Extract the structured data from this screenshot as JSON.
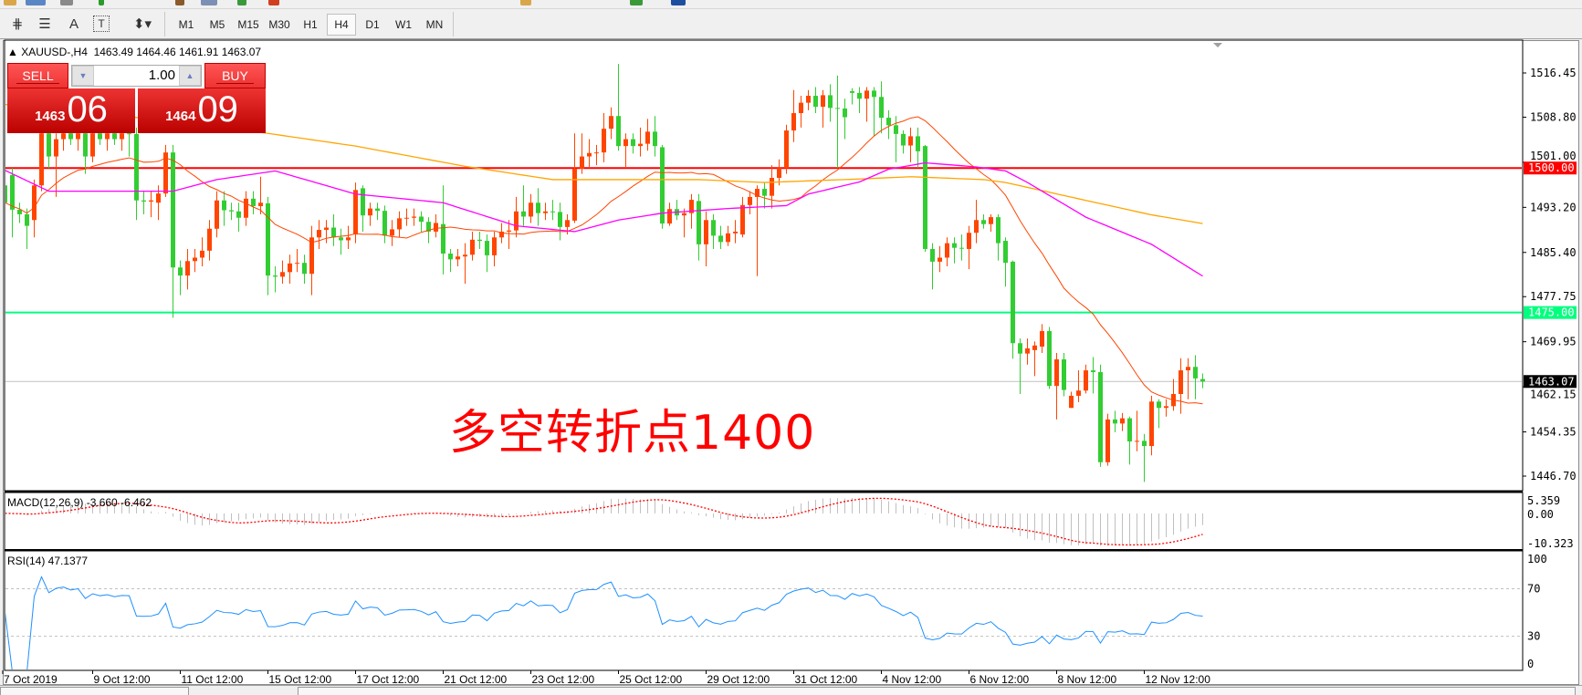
{
  "toolbar": {
    "tools": [
      {
        "icon": "objects-list-icon",
        "glyph": "⋕"
      },
      {
        "icon": "fibonacci-icon",
        "glyph": "☰"
      },
      {
        "icon": "text-icon",
        "glyph": "A"
      },
      {
        "icon": "text-label-icon",
        "glyph": "T"
      },
      {
        "icon": "arrows-dropdown-icon",
        "glyph": "⬍▾"
      }
    ],
    "timeframes": [
      "M1",
      "M5",
      "M15",
      "M30",
      "H1",
      "H4",
      "D1",
      "W1",
      "MN"
    ],
    "selected_timeframe": "H4"
  },
  "chart": {
    "symbol_header": "XAUUSD-,H4",
    "ohlc_header": "1463.49 1464.46 1461.91 1463.07",
    "annotation": "多空转折点1400",
    "one_click": {
      "sell_label": "SELL",
      "buy_label": "BUY",
      "lot": "1.00",
      "sell_price_small": "1463",
      "sell_price_big": "06",
      "buy_price_small": "1464",
      "buy_price_big": "09"
    },
    "price_axis_labels": [
      "1516.45",
      "1508.80",
      "1501.00",
      "1493.20",
      "1485.40",
      "1477.75",
      "1469.95",
      "1462.15",
      "1454.35",
      "1446.70"
    ],
    "hlines": [
      {
        "price": 1500.0,
        "label": "1500.00",
        "color": "#ff0000"
      },
      {
        "price": 1475.0,
        "label": "1475.00",
        "color": "#00ff7f"
      }
    ],
    "current_price": {
      "price": 1463.07,
      "label": "1463.07"
    },
    "time_labels": [
      "7 Oct 2019",
      "9 Oct 12:00",
      "11 Oct 12:00",
      "15 Oct 12:00",
      "17 Oct 12:00",
      "21 Oct 12:00",
      "23 Oct 12:00",
      "25 Oct 12:00",
      "29 Oct 12:00",
      "31 Oct 12:00",
      "4 Nov 12:00",
      "6 Nov 12:00",
      "8 Nov 12:00",
      "12 Nov 12:00"
    ],
    "colors": {
      "bull": "#ff4500",
      "bear": "#32cd32",
      "ma_fast": "#ff4500",
      "ma_mid": "#ff00ff",
      "ma_slow": "#ffa500",
      "rsi": "#1e90ff",
      "macd_hist": "#c0c0c0",
      "macd_signal": "#ff0000"
    }
  },
  "macd": {
    "label": "MACD(12,26,9) -3.660 -6.462",
    "axis_labels": [
      "5.359",
      "0.00",
      "-10.323"
    ],
    "range": [
      -10.323,
      5.359
    ]
  },
  "rsi": {
    "label": "RSI(14) 47.1377",
    "axis_labels": [
      "100",
      "70",
      "30",
      "0"
    ],
    "levels": [
      70,
      30
    ]
  },
  "chart_data": {
    "type": "candlestick",
    "price_range": [
      1446.7,
      1516.45
    ],
    "ohlc": [
      [
        1497,
        1499.5,
        1493,
        1494
      ],
      [
        1498.8,
        1500,
        1488,
        1492.8
      ],
      [
        1492.8,
        1494,
        1490.5,
        1492
      ],
      [
        1492,
        1493,
        1486,
        1490
      ],
      [
        1491,
        1498,
        1488,
        1497
      ],
      [
        1497,
        1507,
        1496,
        1506
      ],
      [
        1506,
        1508,
        1500,
        1502
      ],
      [
        1502,
        1506,
        1495,
        1505
      ],
      [
        1505,
        1508,
        1503,
        1506
      ],
      [
        1506,
        1508,
        1504,
        1505
      ],
      [
        1505,
        1507,
        1503,
        1506
      ],
      [
        1506,
        1507,
        1499,
        1502
      ],
      [
        1502,
        1507,
        1501,
        1506
      ],
      [
        1506,
        1509,
        1504,
        1505
      ],
      [
        1505,
        1507,
        1503,
        1506
      ],
      [
        1506,
        1508,
        1504,
        1505
      ],
      [
        1505,
        1507,
        1503,
        1506
      ],
      [
        1506,
        1508,
        1502,
        1505.9
      ],
      [
        1505.9,
        1507,
        1491,
        1494.4
      ],
      [
        1494.4,
        1496,
        1492,
        1494.2
      ],
      [
        1494.2,
        1496,
        1491.5,
        1494.4
      ],
      [
        1494,
        1497,
        1491,
        1495.6
      ],
      [
        1495.6,
        1504,
        1495,
        1502.7
      ],
      [
        1502.7,
        1504,
        1474.1,
        1482.8
      ],
      [
        1482.8,
        1484,
        1478,
        1481.4
      ],
      [
        1481.4,
        1486,
        1479,
        1483.9
      ],
      [
        1483.9,
        1486,
        1482,
        1484.5
      ],
      [
        1484.5,
        1488,
        1483,
        1485.7
      ],
      [
        1485.7,
        1491,
        1484,
        1489.5
      ],
      [
        1489.5,
        1496,
        1488,
        1494.4
      ],
      [
        1494.4,
        1496,
        1490,
        1492.7
      ],
      [
        1492.7,
        1494,
        1491,
        1492.5
      ],
      [
        1492.5,
        1494,
        1489,
        1491.4
      ],
      [
        1491.4,
        1496,
        1490,
        1494.7
      ],
      [
        1494.7,
        1496,
        1492,
        1493.4
      ],
      [
        1493.4,
        1498.5,
        1492,
        1494
      ],
      [
        1493.9,
        1495,
        1478,
        1481.4
      ],
      [
        1481.4,
        1483,
        1478.5,
        1481.2
      ],
      [
        1481.2,
        1484,
        1480,
        1482
      ],
      [
        1482,
        1485,
        1480,
        1483.5
      ],
      [
        1483.5,
        1486,
        1482,
        1483.6
      ],
      [
        1483.6,
        1485,
        1480,
        1481.7
      ],
      [
        1481.7,
        1490,
        1478,
        1488
      ],
      [
        1488,
        1491,
        1486,
        1489.3
      ],
      [
        1489.3,
        1491,
        1487,
        1489.7
      ],
      [
        1489.7,
        1492,
        1486.5,
        1488
      ],
      [
        1488,
        1489.5,
        1485,
        1487.5
      ],
      [
        1487.5,
        1490,
        1486,
        1488
      ],
      [
        1488.5,
        1497.5,
        1487,
        1496.2
      ],
      [
        1496.5,
        1497,
        1489,
        1491.8
      ],
      [
        1491.8,
        1494,
        1490,
        1493
      ],
      [
        1493,
        1494,
        1491,
        1492.6
      ],
      [
        1492.6,
        1493.5,
        1487,
        1488.3
      ],
      [
        1488.3,
        1491,
        1486.5,
        1489.4
      ],
      [
        1489.4,
        1492.5,
        1488,
        1491.3
      ],
      [
        1491.3,
        1493,
        1490,
        1491.4
      ],
      [
        1491.4,
        1493,
        1490,
        1491.6
      ],
      [
        1491.6,
        1492.5,
        1489,
        1490.7
      ],
      [
        1490.7,
        1491.5,
        1487,
        1489
      ],
      [
        1489,
        1492,
        1488,
        1490.5
      ],
      [
        1490.3,
        1497,
        1481.6,
        1485.2
      ],
      [
        1485.2,
        1486,
        1482,
        1484.2
      ],
      [
        1484.2,
        1486,
        1483,
        1484.7
      ],
      [
        1484.7,
        1487,
        1480,
        1485
      ],
      [
        1485,
        1489,
        1484,
        1487.6
      ],
      [
        1487.6,
        1489,
        1486,
        1487.4
      ],
      [
        1487.4,
        1488.5,
        1482,
        1484.9
      ],
      [
        1484.9,
        1489,
        1483,
        1488
      ],
      [
        1488,
        1490.5,
        1487,
        1489
      ],
      [
        1489,
        1491,
        1486,
        1489.2
      ],
      [
        1489.2,
        1495,
        1488,
        1492.5
      ],
      [
        1492.5,
        1497,
        1490,
        1491.6
      ],
      [
        1491.6,
        1495.5,
        1490.5,
        1494
      ],
      [
        1494,
        1496.5,
        1490,
        1492.2
      ],
      [
        1492.2,
        1494,
        1491,
        1492.5
      ],
      [
        1492.5,
        1494.5,
        1491,
        1492.4
      ],
      [
        1492.4,
        1494,
        1487.5,
        1489.8
      ],
      [
        1489.8,
        1492,
        1488.5,
        1491
      ],
      [
        1490.9,
        1506,
        1490.5,
        1499.9
      ],
      [
        1499.9,
        1506,
        1499,
        1502
      ],
      [
        1502,
        1505,
        1500,
        1502.6
      ],
      [
        1502.6,
        1504,
        1500.5,
        1502.7
      ],
      [
        1502.7,
        1509.5,
        1501,
        1506.8
      ],
      [
        1506.8,
        1510.5,
        1505,
        1509
      ],
      [
        1509,
        1518,
        1503,
        1503.8
      ],
      [
        1503.8,
        1506,
        1500,
        1505
      ],
      [
        1505,
        1506,
        1502.5,
        1503.8
      ],
      [
        1503.8,
        1507,
        1502,
        1504.2
      ],
      [
        1504.2,
        1508.5,
        1503,
        1506.3
      ],
      [
        1506.3,
        1509,
        1502,
        1503.8
      ],
      [
        1503.6,
        1504,
        1489.5,
        1490.4
      ],
      [
        1490.4,
        1494,
        1490,
        1492.9
      ],
      [
        1492.9,
        1494.5,
        1491,
        1491.8
      ],
      [
        1491.8,
        1493,
        1488,
        1492.2
      ],
      [
        1492.2,
        1495.5,
        1489.5,
        1494.5
      ],
      [
        1494.3,
        1495.5,
        1484,
        1486.8
      ],
      [
        1486.8,
        1492.5,
        1483,
        1491
      ],
      [
        1491,
        1492,
        1486,
        1488.3
      ],
      [
        1488.3,
        1490,
        1486,
        1487.2
      ],
      [
        1487.2,
        1490,
        1486.5,
        1488.7
      ],
      [
        1488.7,
        1491,
        1487,
        1489
      ],
      [
        1488.5,
        1495,
        1488,
        1493.6
      ],
      [
        1493.6,
        1496,
        1492,
        1495
      ],
      [
        1495,
        1497,
        1481.3,
        1496.4
      ],
      [
        1496.4,
        1497.5,
        1493,
        1495.2
      ],
      [
        1495.2,
        1500.5,
        1493,
        1498.3
      ],
      [
        1498.3,
        1501.5,
        1497,
        1500
      ],
      [
        1500,
        1507.5,
        1499,
        1506.5
      ],
      [
        1506.5,
        1513.5,
        1504.5,
        1509.5
      ],
      [
        1509.5,
        1512.5,
        1507,
        1511.3
      ],
      [
        1511.3,
        1513.5,
        1510,
        1512.5
      ],
      [
        1512.5,
        1514,
        1509.5,
        1510.6
      ],
      [
        1510.6,
        1513.5,
        1507,
        1512.6
      ],
      [
        1512.6,
        1514.5,
        1508,
        1510.4
      ],
      [
        1510.4,
        1516,
        1500,
        1510.3
      ],
      [
        1510.3,
        1512,
        1505,
        1508.8
      ],
      [
        1513.3,
        1513.8,
        1511,
        1513
      ],
      [
        1513,
        1514,
        1509.5,
        1512
      ],
      [
        1512,
        1514,
        1508,
        1513.4
      ],
      [
        1513.4,
        1514,
        1505.5,
        1512.3
      ],
      [
        1512.3,
        1515,
        1506,
        1508.7
      ],
      [
        1508.7,
        1510,
        1505,
        1507.4
      ],
      [
        1507.4,
        1509,
        1501,
        1505.9
      ],
      [
        1505.9,
        1506.5,
        1502.5,
        1503.9
      ],
      [
        1503.9,
        1507,
        1501,
        1505.5
      ],
      [
        1505.5,
        1507,
        1500,
        1502.9
      ],
      [
        1503.8,
        1504,
        1485.5,
        1486
      ],
      [
        1486,
        1487,
        1479,
        1483.8
      ],
      [
        1483.8,
        1486.5,
        1482,
        1484.5
      ],
      [
        1484.5,
        1488,
        1483,
        1487
      ],
      [
        1487,
        1488,
        1483.5,
        1486.2
      ],
      [
        1486.2,
        1488.5,
        1484,
        1486.1
      ],
      [
        1486,
        1490,
        1482.5,
        1488.8
      ],
      [
        1488.8,
        1494.5,
        1487,
        1491
      ],
      [
        1491,
        1492,
        1489.5,
        1490.3
      ],
      [
        1490.3,
        1492,
        1489,
        1491.5
      ],
      [
        1491.5,
        1492,
        1484,
        1487
      ],
      [
        1487.4,
        1488,
        1479.5,
        1483.6
      ],
      [
        1483.8,
        1484,
        1467,
        1469.7
      ],
      [
        1469.7,
        1470.5,
        1460.9,
        1467.9
      ],
      [
        1467.9,
        1470.5,
        1466,
        1468.8
      ],
      [
        1468.5,
        1470,
        1464,
        1469.3
      ],
      [
        1469.1,
        1473,
        1468,
        1471.8
      ],
      [
        1471.8,
        1472.5,
        1461.8,
        1462.3
      ],
      [
        1462.3,
        1468,
        1456.5,
        1466.9
      ],
      [
        1466.9,
        1468,
        1460.5,
        1461.6
      ],
      [
        1458.5,
        1461.3,
        1458.5,
        1460.6
      ],
      [
        1460.6,
        1465,
        1459.5,
        1461.5
      ],
      [
        1461.5,
        1466,
        1461,
        1465
      ],
      [
        1465,
        1467.3,
        1461,
        1464.7
      ],
      [
        1464.7,
        1466,
        1448.3,
        1449.1
      ],
      [
        1449.1,
        1457.5,
        1448.5,
        1456.5
      ],
      [
        1456.5,
        1458,
        1454.3,
        1455.8
      ],
      [
        1455.8,
        1457.6,
        1454.5,
        1456.7
      ],
      [
        1456.7,
        1457,
        1448.7,
        1452.7
      ],
      [
        1452.7,
        1458,
        1451,
        1452.8
      ],
      [
        1452.8,
        1454,
        1445.7,
        1451.9
      ],
      [
        1451.9,
        1460.6,
        1450.3,
        1459.6
      ],
      [
        1459.6,
        1460,
        1455,
        1458.5
      ],
      [
        1458.5,
        1460,
        1457,
        1458.8
      ],
      [
        1458.8,
        1463.5,
        1458,
        1460.9
      ],
      [
        1460.9,
        1467.1,
        1457.5,
        1465
      ],
      [
        1465,
        1467.1,
        1460,
        1465.6
      ],
      [
        1465.6,
        1467.6,
        1460,
        1463.6
      ],
      [
        1463.49,
        1464.46,
        1461.91,
        1463.07
      ]
    ],
    "ma_mid_points": [
      [
        0,
        1499.6
      ],
      [
        6,
        1496
      ],
      [
        23,
        1496
      ],
      [
        29,
        1498
      ],
      [
        37,
        1499.5
      ],
      [
        48,
        1495.5
      ],
      [
        60,
        1494
      ],
      [
        70,
        1490
      ],
      [
        78,
        1489
      ],
      [
        84,
        1491
      ],
      [
        90,
        1492.2
      ],
      [
        99,
        1493
      ],
      [
        107,
        1493.5
      ],
      [
        110,
        1495.5
      ],
      [
        117,
        1497.6
      ],
      [
        121,
        1499.8
      ],
      [
        126,
        1500.9
      ],
      [
        133,
        1500.2
      ],
      [
        137,
        1499.5
      ],
      [
        140,
        1497.5
      ],
      [
        148,
        1491.5
      ],
      [
        157,
        1486.8
      ],
      [
        164,
        1481.3
      ]
    ],
    "ma_slow_points": [
      [
        0,
        1511
      ],
      [
        20,
        1508.5
      ],
      [
        36,
        1506
      ],
      [
        48,
        1503.8
      ],
      [
        63,
        1500.3
      ],
      [
        75,
        1498
      ],
      [
        95,
        1498
      ],
      [
        104,
        1497.5
      ],
      [
        117,
        1498.1
      ],
      [
        124,
        1498.5
      ],
      [
        134,
        1498
      ],
      [
        137,
        1497.5
      ],
      [
        148,
        1494.4
      ],
      [
        157,
        1491.9
      ],
      [
        164,
        1490.4
      ]
    ]
  }
}
